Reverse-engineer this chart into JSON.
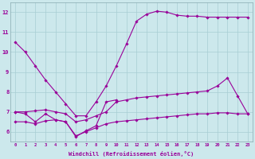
{
  "background_color": "#cce8ec",
  "grid_color": "#a8cdd3",
  "line_color": "#990099",
  "xlabel": "Windchill (Refroidissement éolien,°C)",
  "x_ticks": [
    0,
    1,
    2,
    3,
    4,
    5,
    6,
    7,
    8,
    9,
    10,
    11,
    12,
    13,
    14,
    15,
    16,
    17,
    18,
    19,
    20,
    21,
    22,
    23
  ],
  "ylim": [
    5.5,
    12.5
  ],
  "xlim": [
    -0.5,
    23.5
  ],
  "yticks": [
    6,
    7,
    8,
    9,
    10,
    11,
    12
  ],
  "curve1_x": [
    0,
    1,
    2,
    3,
    4,
    5,
    6,
    7,
    8,
    9,
    10,
    11,
    12,
    13,
    14,
    15,
    16,
    17,
    18,
    19,
    20,
    21,
    22,
    23
  ],
  "curve1_y": [
    10.5,
    10.0,
    9.3,
    8.6,
    8.0,
    7.4,
    6.8,
    6.8,
    7.5,
    8.3,
    9.3,
    10.4,
    11.55,
    11.9,
    12.05,
    12.0,
    11.85,
    11.8,
    11.8,
    11.75,
    11.75,
    11.75,
    11.75,
    11.75
  ],
  "curve2_x": [
    0,
    1,
    2,
    3,
    4,
    5,
    6,
    7,
    8,
    9,
    10
  ],
  "curve2_y": [
    7.0,
    6.9,
    6.5,
    6.9,
    6.6,
    6.5,
    5.75,
    6.05,
    6.3,
    7.5,
    7.6
  ],
  "curve3_x": [
    0,
    1,
    2,
    3,
    4,
    5,
    6,
    7,
    8,
    9,
    10,
    11,
    12,
    13,
    14,
    15,
    16,
    17,
    18,
    19,
    20,
    21,
    22,
    23
  ],
  "curve3_y": [
    7.0,
    7.0,
    7.05,
    7.1,
    7.0,
    6.9,
    6.5,
    6.6,
    6.8,
    7.0,
    7.5,
    7.6,
    7.7,
    7.75,
    7.8,
    7.85,
    7.9,
    7.95,
    8.0,
    8.05,
    8.3,
    8.7,
    7.8,
    6.9
  ],
  "curve4_x": [
    0,
    1,
    2,
    3,
    4,
    5,
    6,
    7,
    8,
    9,
    10,
    11,
    12,
    13,
    14,
    15,
    16,
    17,
    18,
    19,
    20,
    21,
    22,
    23
  ],
  "curve4_y": [
    6.5,
    6.5,
    6.4,
    6.55,
    6.6,
    6.5,
    5.8,
    6.0,
    6.2,
    6.4,
    6.5,
    6.55,
    6.6,
    6.65,
    6.7,
    6.75,
    6.8,
    6.85,
    6.9,
    6.9,
    6.95,
    6.95,
    6.9,
    6.9
  ]
}
